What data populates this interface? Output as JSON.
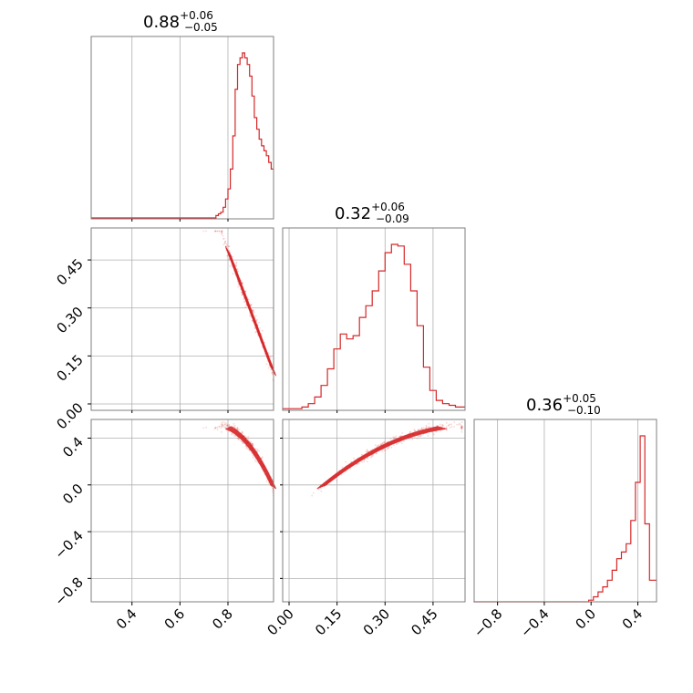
{
  "chart_data": {
    "type": "corner",
    "color": "#d62728",
    "parameters": [
      {
        "title": {
          "median": "0.88",
          "plus": "+0.06",
          "minus": "−0.05"
        },
        "range": [
          0.23,
          0.99
        ],
        "ticks": [
          0.4,
          0.6,
          0.8
        ],
        "tick_labels": [
          "0.4",
          "0.6",
          "0.8"
        ],
        "hist_edges": [
          0.75,
          0.76,
          0.77,
          0.78,
          0.79,
          0.8,
          0.81,
          0.82,
          0.83,
          0.84,
          0.85,
          0.86,
          0.87,
          0.88,
          0.89,
          0.9,
          0.91,
          0.92,
          0.93,
          0.94,
          0.95,
          0.96,
          0.97,
          0.98,
          0.99
        ],
        "hist_values": [
          0.02,
          0.03,
          0.04,
          0.07,
          0.12,
          0.18,
          0.3,
          0.5,
          0.78,
          0.93,
          0.97,
          1.0,
          0.97,
          0.93,
          0.86,
          0.74,
          0.61,
          0.54,
          0.48,
          0.44,
          0.41,
          0.38,
          0.34,
          0.3
        ]
      },
      {
        "title": {
          "median": "0.32",
          "plus": "+0.06",
          "minus": "−0.09"
        },
        "range": [
          -0.02,
          0.55
        ],
        "ticks": [
          0.0,
          0.15,
          0.3,
          0.45
        ],
        "tick_labels": [
          "0.00",
          "0.15",
          "0.30",
          "0.45"
        ],
        "hist_edges": [
          -0.02,
          0.0,
          0.02,
          0.04,
          0.06,
          0.08,
          0.1,
          0.12,
          0.14,
          0.16,
          0.18,
          0.2,
          0.22,
          0.24,
          0.26,
          0.28,
          0.3,
          0.32,
          0.34,
          0.36,
          0.38,
          0.4,
          0.42,
          0.44,
          0.46,
          0.48,
          0.5,
          0.52,
          0.55
        ],
        "hist_values": [
          0.01,
          0.01,
          0.01,
          0.02,
          0.04,
          0.08,
          0.15,
          0.25,
          0.37,
          0.46,
          0.43,
          0.45,
          0.56,
          0.63,
          0.72,
          0.84,
          0.95,
          1.0,
          0.99,
          0.88,
          0.72,
          0.51,
          0.26,
          0.12,
          0.06,
          0.04,
          0.03,
          0.02
        ]
      },
      {
        "title": {
          "median": "0.36",
          "plus": "+0.05",
          "minus": "−0.10"
        },
        "range": [
          -1.0,
          0.56
        ],
        "ticks": [
          -0.8,
          -0.4,
          0.0,
          0.4
        ],
        "tick_labels": [
          "−0.8",
          "−0.4",
          "0.0",
          "0.4"
        ],
        "hist_edges": [
          -1.0,
          -0.02,
          0.02,
          0.06,
          0.1,
          0.14,
          0.18,
          0.22,
          0.26,
          0.3,
          0.34,
          0.38,
          0.42,
          0.46,
          0.5,
          0.56
        ],
        "hist_values": [
          0.0,
          0.01,
          0.03,
          0.06,
          0.09,
          0.13,
          0.19,
          0.26,
          0.3,
          0.35,
          0.49,
          0.72,
          1.0,
          0.47,
          0.13
        ]
      }
    ]
  }
}
